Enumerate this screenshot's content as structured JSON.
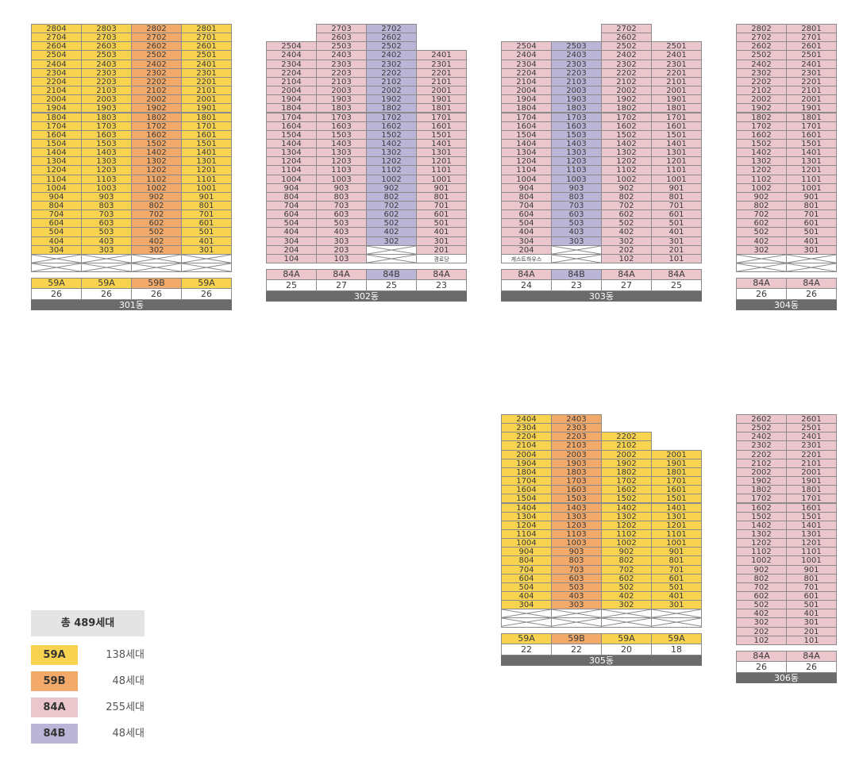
{
  "colors": {
    "59A": "#f8d34f",
    "59B": "#f2a96a",
    "84A": "#ebc7cd",
    "84B": "#bbb6d8",
    "none": "#ffffff",
    "label_bg": "#6b6b6b"
  },
  "buildings": [
    {
      "name": "301동",
      "floor_range": [
        3,
        28
      ],
      "special_floors": {},
      "empty_floors": [
        1,
        2
      ],
      "columns": [
        {
          "line": "04",
          "type": "59A",
          "count": "26",
          "top": 28
        },
        {
          "line": "03",
          "type": "59A",
          "count": "26",
          "top": 28
        },
        {
          "line": "02",
          "type": "59B",
          "count": "26",
          "top": 28
        },
        {
          "line": "01",
          "type": "59A",
          "count": "26",
          "top": 28
        }
      ]
    },
    {
      "name": "302동",
      "floor_range": [
        2,
        27
      ],
      "special_floors": {
        "1": [
          "104",
          "103",
          null,
          "경로당"
        ]
      },
      "empty_floors": [],
      "columns": [
        {
          "line": "04",
          "type": "84A",
          "count": "25",
          "top": 25,
          "bottom": 1
        },
        {
          "line": "03",
          "type": "84A",
          "count": "27",
          "top": 27,
          "bottom": 1
        },
        {
          "line": "02",
          "type": "84B",
          "count": "25",
          "top": 27,
          "bottom": 3
        },
        {
          "line": "01",
          "type": "84A",
          "count": "23",
          "top": 24,
          "bottom": 1,
          "cell_types": {
            "1": "none"
          }
        }
      ]
    },
    {
      "name": "303동",
      "floor_range": [
        2,
        27
      ],
      "special_floors": {
        "1": [
          "게스트하우스",
          null,
          "102",
          "101"
        ]
      },
      "empty_floors": [],
      "columns": [
        {
          "line": "04",
          "type": "84A",
          "count": "24",
          "top": 25,
          "bottom": 1,
          "cell_types": {
            "1": "none"
          }
        },
        {
          "line": "03",
          "type": "84B",
          "count": "23",
          "top": 25,
          "bottom": 3
        },
        {
          "line": "02",
          "type": "84A",
          "count": "27",
          "top": 27,
          "bottom": 1
        },
        {
          "line": "01",
          "type": "84A",
          "count": "25",
          "top": 25,
          "bottom": 1
        }
      ]
    },
    {
      "name": "304동",
      "floor_range": [
        3,
        28
      ],
      "special_floors": {},
      "empty_floors": [
        1,
        2
      ],
      "columns": [
        {
          "line": "02",
          "type": "84A",
          "count": "26",
          "top": 28
        },
        {
          "line": "01",
          "type": "84A",
          "count": "26",
          "top": 28
        }
      ]
    },
    {
      "name": "305동",
      "floor_range": [
        3,
        24
      ],
      "special_floors": {},
      "empty_floors": [
        1,
        2
      ],
      "columns": [
        {
          "line": "04",
          "type": "59A",
          "count": "22",
          "top": 24
        },
        {
          "line": "03",
          "type": "59B",
          "count": "22",
          "top": 24
        },
        {
          "line": "02",
          "type": "59A",
          "count": "20",
          "top": 22
        },
        {
          "line": "01",
          "type": "59A",
          "count": "18",
          "top": 20
        }
      ]
    },
    {
      "name": "306동",
      "floor_range": [
        1,
        26
      ],
      "special_floors": {},
      "empty_floors": [],
      "columns": [
        {
          "line": "02",
          "type": "84A",
          "count": "26",
          "top": 26
        },
        {
          "line": "01",
          "type": "84A",
          "count": "26",
          "top": 26
        }
      ]
    }
  ],
  "legend": {
    "total_label": "총 489세대",
    "items": [
      {
        "type": "59A",
        "count": "138세대"
      },
      {
        "type": "59B",
        "count": "48세대"
      },
      {
        "type": "84A",
        "count": "255세대"
      },
      {
        "type": "84B",
        "count": "48세대"
      }
    ]
  }
}
